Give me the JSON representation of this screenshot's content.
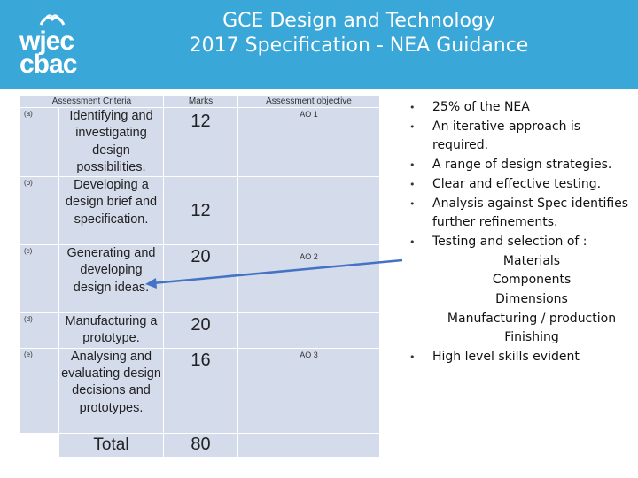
{
  "header": {
    "logo_line1": "wjec",
    "logo_line2": "cbac",
    "title_line1": "GCE Design and Technology",
    "title_line2": "2017 Specification  - NEA Guidance"
  },
  "table": {
    "headers": {
      "criteria": "Assessment Criteria",
      "marks": "Marks",
      "objective": "Assessment objective"
    },
    "rows": [
      {
        "letter": "(a)",
        "criterion": "Identifying and investigating design possibilities.",
        "marks": "12",
        "ao": "AO 1"
      },
      {
        "letter": "(b)",
        "criterion": "Developing a design brief and specification.",
        "marks": "12",
        "ao": ""
      },
      {
        "letter": "(c)",
        "criterion": "Generating and developing design ideas.",
        "marks": "20",
        "ao": "AO 2"
      },
      {
        "letter": "(d)",
        "criterion": "Manufacturing a prototype.",
        "marks": "20",
        "ao": ""
      },
      {
        "letter": "(e)",
        "criterion": "Analysing and evaluating design decisions and prototypes.",
        "marks": "16",
        "ao": "AO 3"
      }
    ],
    "total_label": "Total",
    "total_value": "80"
  },
  "bullets": {
    "b1": "25% of the NEA",
    "b2": "An iterative approach is required.",
    "b3": "A range of design strategies.",
    "b4": "Clear and effective testing.",
    "b5": "Analysis against Spec identifies further refinements.",
    "b6": "Testing and selection of :",
    "sub": [
      "Materials",
      "Components",
      "Dimensions",
      "Manufacturing / production",
      "Finishing"
    ],
    "b7": "High level skills evident"
  },
  "colors": {
    "banner": "#3aa7d9",
    "table_fill": "#d4dbeb",
    "arrow": "#4472c4"
  }
}
